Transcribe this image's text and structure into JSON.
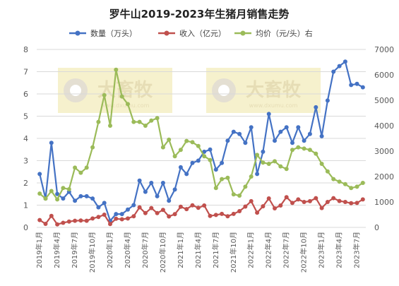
{
  "chart_data": {
    "type": "line",
    "title": "罗牛山2019-2023年生猪月销售走势",
    "x": [
      "2019年1月",
      "2019年2月",
      "2019年3月",
      "2019年4月",
      "2019年5月",
      "2019年6月",
      "2019年7月",
      "2019年8月",
      "2019年9月",
      "2019年10月",
      "2019年11月",
      "2019年12月",
      "2020年1月",
      "2020年2月",
      "2020年3月",
      "2020年4月",
      "2020年5月",
      "2020年6月",
      "2020年7月",
      "2020年8月",
      "2020年9月",
      "2020年10月",
      "2020年11月",
      "2020年12月",
      "2021年1月",
      "2021年2月",
      "2021年3月",
      "2021年4月",
      "2021年5月",
      "2021年6月",
      "2021年7月",
      "2021年8月",
      "2021年9月",
      "2021年10月",
      "2021年11月",
      "2021年12月",
      "2022年1月",
      "2022年2月",
      "2022年3月",
      "2022年4月",
      "2022年5月",
      "2022年6月",
      "2022年7月",
      "2022年8月",
      "2022年9月",
      "2022年10月",
      "2022年11月",
      "2022年12月",
      "2023年1月",
      "2023年2月",
      "2023年3月",
      "2023年4月",
      "2023年5月",
      "2023年6月",
      "2023年7月",
      "2023年8月"
    ],
    "x_tick_labels": [
      "2019年1月",
      "2019年4月",
      "2019年7月",
      "2019年10月",
      "2020年1月",
      "2020年4月",
      "2020年7月",
      "2020年10月",
      "2021年1月",
      "2021年4月",
      "2021年7月",
      "2021年10月",
      "2022年1月",
      "2022年4月",
      "2022年7月",
      "2022年10月",
      "2023年1月",
      "2023年4月",
      "2023年7月"
    ],
    "y_left": {
      "min": 0,
      "max": 8,
      "ticks": [
        "0",
        "1",
        "2",
        "3",
        "4",
        "5",
        "6",
        "7",
        "8"
      ]
    },
    "y_right": {
      "min": 0,
      "max": 7000,
      "ticks": [
        "0",
        "1000",
        "2000",
        "3000",
        "4000",
        "5000",
        "6000",
        "7000"
      ]
    },
    "legend_position": "top",
    "series": [
      {
        "name": "数量（万头）",
        "axis": "left",
        "color": "#4472C4",
        "values": [
          2.4,
          1.3,
          3.8,
          1.5,
          1.3,
          1.6,
          1.2,
          1.4,
          1.4,
          1.3,
          0.9,
          1.1,
          0.3,
          0.6,
          0.6,
          0.8,
          1.0,
          2.1,
          1.6,
          2.0,
          1.4,
          2.0,
          1.2,
          1.7,
          2.7,
          2.4,
          2.9,
          3.0,
          3.4,
          3.5,
          2.6,
          2.9,
          3.9,
          4.3,
          4.2,
          3.8,
          4.5,
          2.4,
          3.4,
          5.1,
          3.9,
          4.3,
          4.5,
          3.8,
          4.5,
          3.9,
          4.2,
          5.4,
          4.1,
          5.7,
          7.0,
          7.25,
          7.45,
          6.4,
          6.45,
          6.3
        ]
      },
      {
        "name": "收入（亿元）",
        "axis": "right",
        "color": "#C0504D",
        "values": [
          290,
          140,
          450,
          120,
          180,
          230,
          260,
          270,
          260,
          350,
          410,
          500,
          130,
          340,
          320,
          350,
          440,
          790,
          560,
          760,
          560,
          690,
          430,
          520,
          810,
          720,
          870,
          770,
          860,
          450,
          490,
          530,
          440,
          530,
          640,
          820,
          1030,
          580,
          830,
          1140,
          750,
          860,
          1190,
          960,
          1100,
          1000,
          1030,
          1150,
          760,
          1000,
          1150,
          1040,
          1000,
          950,
          960,
          1100
        ]
      },
      {
        "name": "均价（元/头）右",
        "axis": "right",
        "color": "#9BBB59",
        "values": [
          1330,
          1130,
          1430,
          1100,
          1550,
          1500,
          2350,
          2150,
          2350,
          3150,
          4150,
          5200,
          4000,
          6200,
          5150,
          4850,
          4150,
          4150,
          4000,
          4200,
          4300,
          3150,
          3450,
          2800,
          3050,
          3400,
          3350,
          3200,
          2800,
          2650,
          1550,
          1900,
          1950,
          1300,
          1250,
          1600,
          2000,
          2850,
          2550,
          2500,
          2600,
          2400,
          2300,
          3050,
          3150,
          3100,
          3050,
          2900,
          2500,
          2200,
          1900,
          1800,
          1700,
          1550,
          1600,
          1750
        ]
      }
    ],
    "watermarks": [
      "大畜牧",
      "大畜牧"
    ],
    "watermark_sub": "www.dxumu.com"
  }
}
